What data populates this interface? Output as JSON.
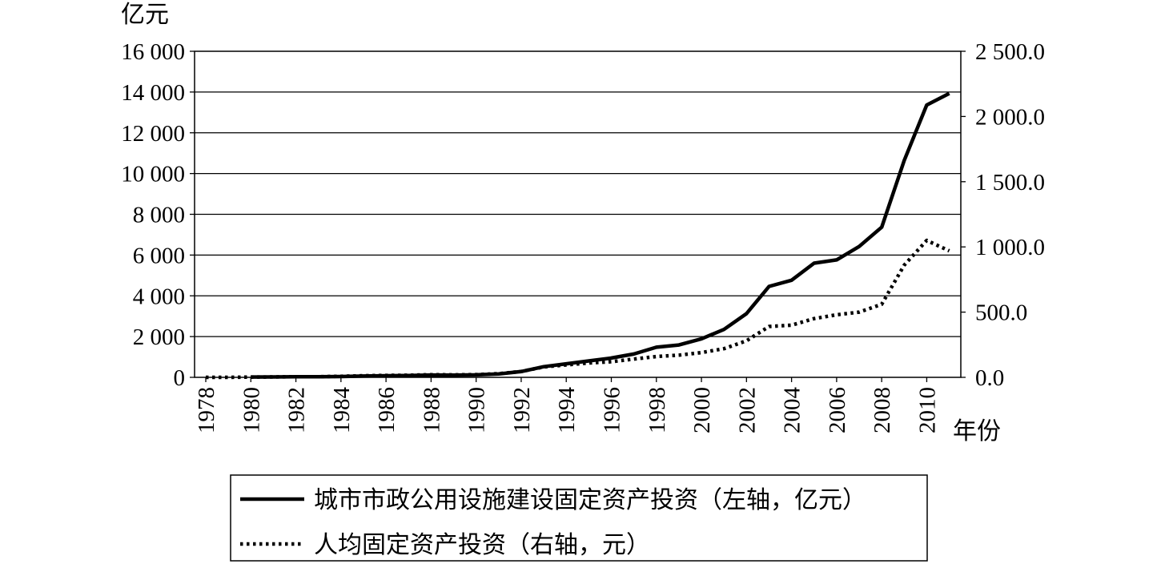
{
  "chart_data": {
    "type": "line",
    "title": "",
    "xlabel": "年份",
    "ylabel_left": "亿元",
    "ylabel_right": "",
    "x_range": [
      1978,
      2011
    ],
    "x_ticks": [
      "1978",
      "1980",
      "1982",
      "1984",
      "1986",
      "1988",
      "1990",
      "1992",
      "1994",
      "1996",
      "1998",
      "2000",
      "2002",
      "2004",
      "2006",
      "2008",
      "2010"
    ],
    "y_left": {
      "range": [
        0,
        16000
      ],
      "ticks": [
        0,
        2000,
        4000,
        6000,
        8000,
        10000,
        12000,
        14000,
        16000
      ],
      "tick_labels": [
        "0",
        "2 000",
        "4 000",
        "6 000",
        "8 000",
        "10 000",
        "12 000",
        "14 000",
        "16 000"
      ]
    },
    "y_right": {
      "range": [
        0,
        2500
      ],
      "ticks": [
        0,
        500,
        1000,
        1500,
        2000,
        2500
      ],
      "tick_labels": [
        "0.0",
        "500.0",
        "1 000.0",
        "1 500.0",
        "2 000.0",
        "2 500.0"
      ]
    },
    "grid": "horizontal",
    "legend_position": "bottom",
    "series": [
      {
        "name": "城市市政公用设施建设固定资产投资（左轴，亿元）",
        "axis": "left",
        "style": "solid",
        "x": [
          1980,
          1981,
          1982,
          1983,
          1984,
          1985,
          1986,
          1987,
          1988,
          1989,
          1990,
          1991,
          1992,
          1993,
          1994,
          1995,
          1996,
          1997,
          1998,
          1999,
          2000,
          2001,
          2002,
          2003,
          2004,
          2005,
          2006,
          2007,
          2008,
          2009,
          2010,
          2011
        ],
        "values": [
          14,
          20,
          27,
          28,
          41,
          64,
          80,
          90,
          113,
          107,
          121,
          170,
          283,
          522,
          666,
          807,
          948,
          1143,
          1477,
          1590,
          1890,
          2352,
          3124,
          4462,
          4763,
          5602,
          5765,
          6419,
          7368,
          10642,
          13363,
          13934
        ]
      },
      {
        "name": "人均固定资产投资（右轴，元）",
        "axis": "right",
        "style": "dotted",
        "x": [
          1978,
          1979,
          1980,
          1981,
          1982,
          1983,
          1984,
          1985,
          1986,
          1987,
          1988,
          1989,
          1990,
          1991,
          1992,
          1993,
          1994,
          1995,
          1996,
          1997,
          1998,
          1999,
          2000,
          2001,
          2002,
          2003,
          2004,
          2005,
          2006,
          2007,
          2008,
          2009,
          2010,
          2011
        ],
        "values": [
          0,
          0,
          2,
          3,
          5,
          5,
          8,
          12,
          15,
          16,
          20,
          19,
          21,
          28,
          45,
          80,
          95,
          110,
          120,
          140,
          160,
          170,
          190,
          220,
          280,
          390,
          400,
          450,
          480,
          500,
          560,
          860,
          1050,
          970
        ]
      }
    ]
  }
}
